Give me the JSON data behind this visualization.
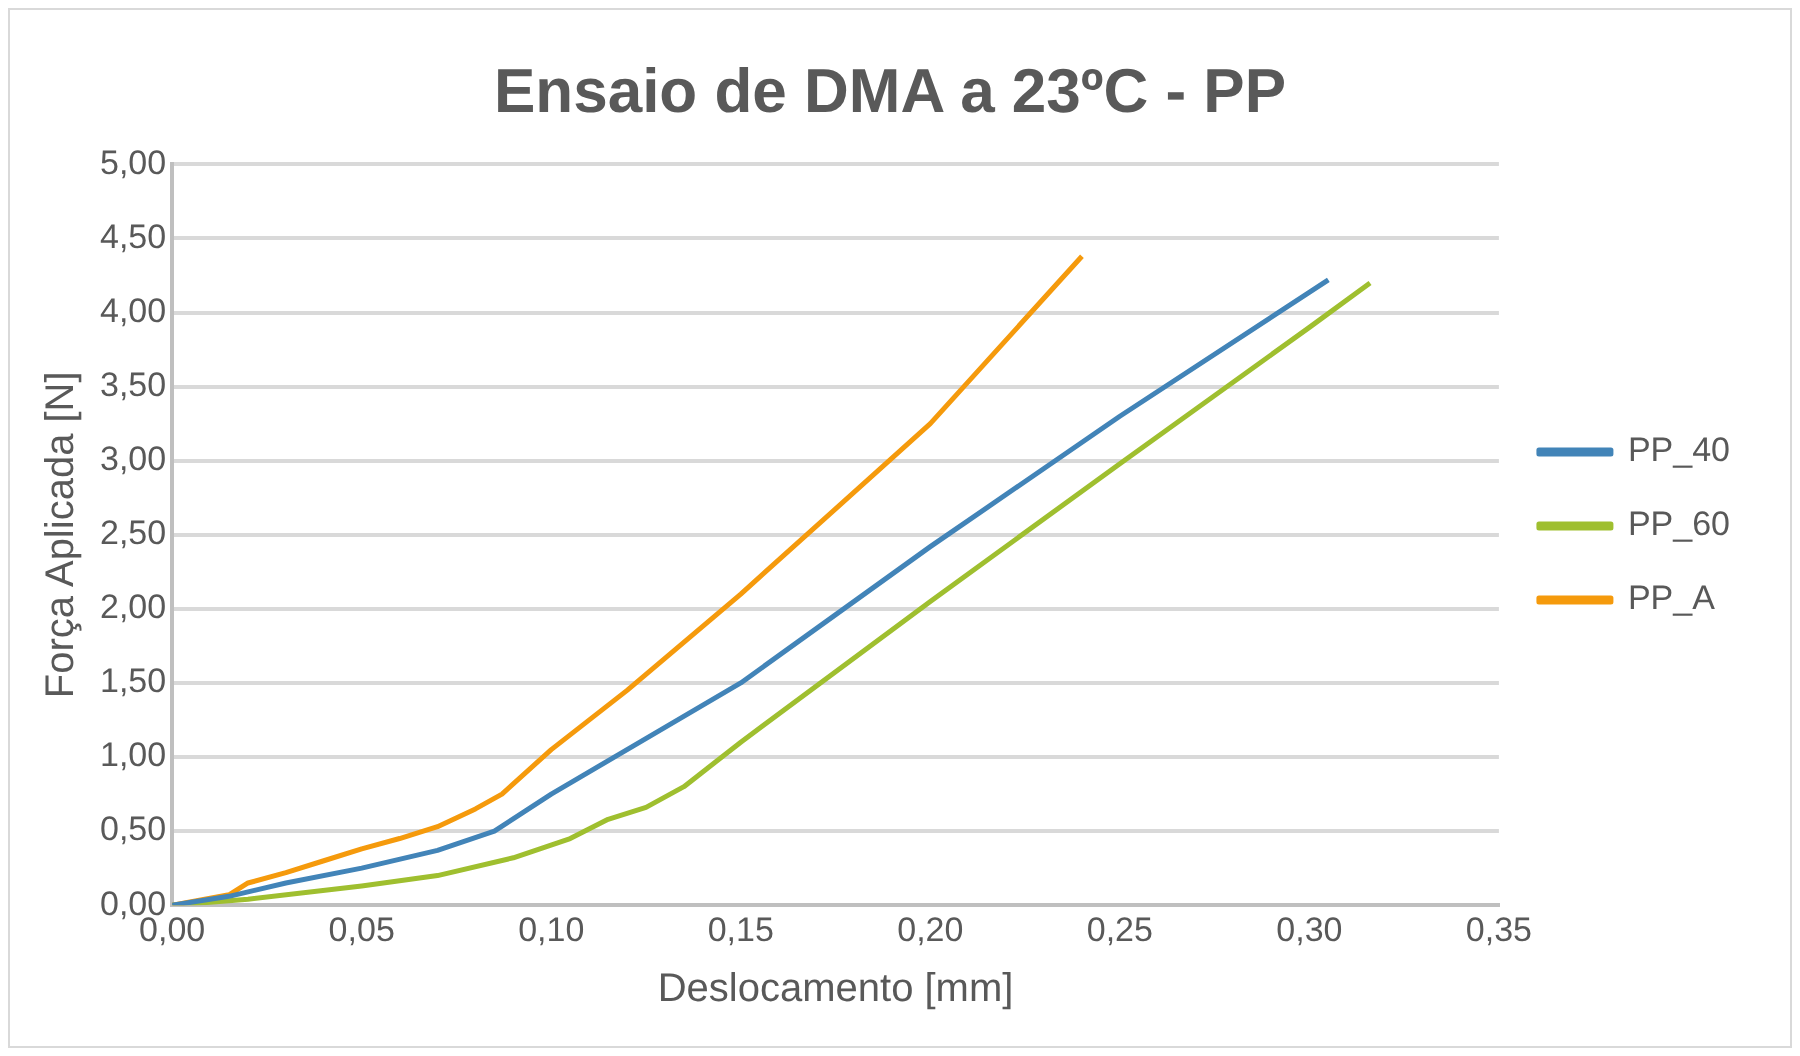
{
  "chart_data": {
    "type": "line",
    "title": "Ensaio de DMA a 23ºC - PP",
    "xlabel": "Deslocamento [mm]",
    "ylabel": "Força Aplicada [N]",
    "xlim": [
      0,
      0.35
    ],
    "xticks": [
      {
        "value": 0,
        "label": "0,00"
      },
      {
        "value": 0.05,
        "label": "0,05"
      },
      {
        "value": 0.1,
        "label": "0,10"
      },
      {
        "value": 0.15,
        "label": "0,15"
      },
      {
        "value": 0.2,
        "label": "0,20"
      },
      {
        "value": 0.25,
        "label": "0,25"
      },
      {
        "value": 0.3,
        "label": "0,30"
      },
      {
        "value": 0.35,
        "label": "0,35"
      }
    ],
    "ylim": [
      0,
      5
    ],
    "yticks": [
      {
        "value": 0,
        "label": "0,00"
      },
      {
        "value": 0.5,
        "label": "0,50"
      },
      {
        "value": 1,
        "label": "1,00"
      },
      {
        "value": 1.5,
        "label": "1,50"
      },
      {
        "value": 2,
        "label": "2,00"
      },
      {
        "value": 2.5,
        "label": "2,50"
      },
      {
        "value": 3,
        "label": "3,00"
      },
      {
        "value": 3.5,
        "label": "3,50"
      },
      {
        "value": 4,
        "label": "4,00"
      },
      {
        "value": 4.5,
        "label": "4,50"
      },
      {
        "value": 5,
        "label": "5,00"
      }
    ],
    "grid": "y",
    "legend": "right",
    "marker": "none",
    "line_style": "solid",
    "series": [
      {
        "name": "PP_40",
        "color": "#4284b8",
        "x": [
          0,
          0.015,
          0.03,
          0.05,
          0.07,
          0.085,
          0.1,
          0.12,
          0.15,
          0.2,
          0.25,
          0.305
        ],
        "values": [
          0,
          0.06,
          0.15,
          0.25,
          0.37,
          0.5,
          0.75,
          1.05,
          1.5,
          2.42,
          3.3,
          4.22
        ]
      },
      {
        "name": "PP_60",
        "color": "#9fbf2f",
        "x": [
          0,
          0.02,
          0.05,
          0.07,
          0.09,
          0.105,
          0.115,
          0.125,
          0.135,
          0.15,
          0.2,
          0.25,
          0.3,
          0.316
        ],
        "values": [
          0,
          0.04,
          0.13,
          0.2,
          0.32,
          0.45,
          0.58,
          0.66,
          0.8,
          1.1,
          2.05,
          2.98,
          3.9,
          4.2
        ]
      },
      {
        "name": "PP_A",
        "color": "#f59a0c",
        "x": [
          0,
          0.015,
          0.02,
          0.03,
          0.04,
          0.05,
          0.06,
          0.07,
          0.08,
          0.087,
          0.1,
          0.12,
          0.15,
          0.2,
          0.24
        ],
        "values": [
          0,
          0.07,
          0.15,
          0.22,
          0.3,
          0.38,
          0.45,
          0.53,
          0.65,
          0.75,
          1.05,
          1.45,
          2.1,
          3.25,
          4.38
        ]
      }
    ]
  }
}
